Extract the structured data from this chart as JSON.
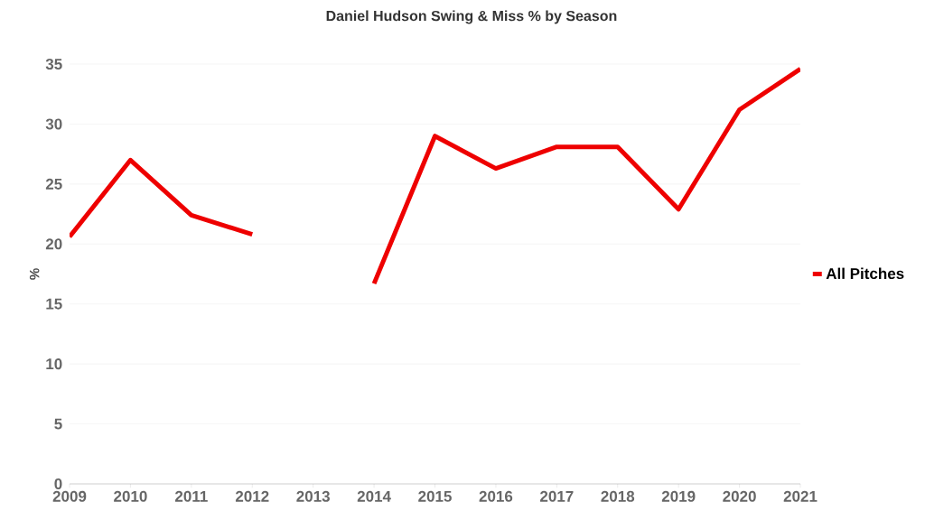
{
  "chart_data": {
    "type": "line",
    "title": "Daniel Hudson Swing & Miss % by Season",
    "ylabel": "%",
    "categories": [
      "2009",
      "2010",
      "2011",
      "2012",
      "2013",
      "2014",
      "2015",
      "2016",
      "2017",
      "2018",
      "2019",
      "2020",
      "2021"
    ],
    "series": [
      {
        "name": "All Pitches",
        "color": "#ee0000",
        "values": [
          20.6,
          27.0,
          22.4,
          20.8,
          null,
          16.7,
          29.0,
          26.3,
          28.1,
          28.1,
          22.9,
          31.2,
          34.6
        ]
      }
    ],
    "ylim": [
      0,
      35
    ],
    "yticks": [
      0,
      5,
      10,
      15,
      20,
      25,
      30,
      35
    ],
    "grid": "y",
    "legend": "right",
    "marker": "none",
    "line_style": "solid"
  }
}
